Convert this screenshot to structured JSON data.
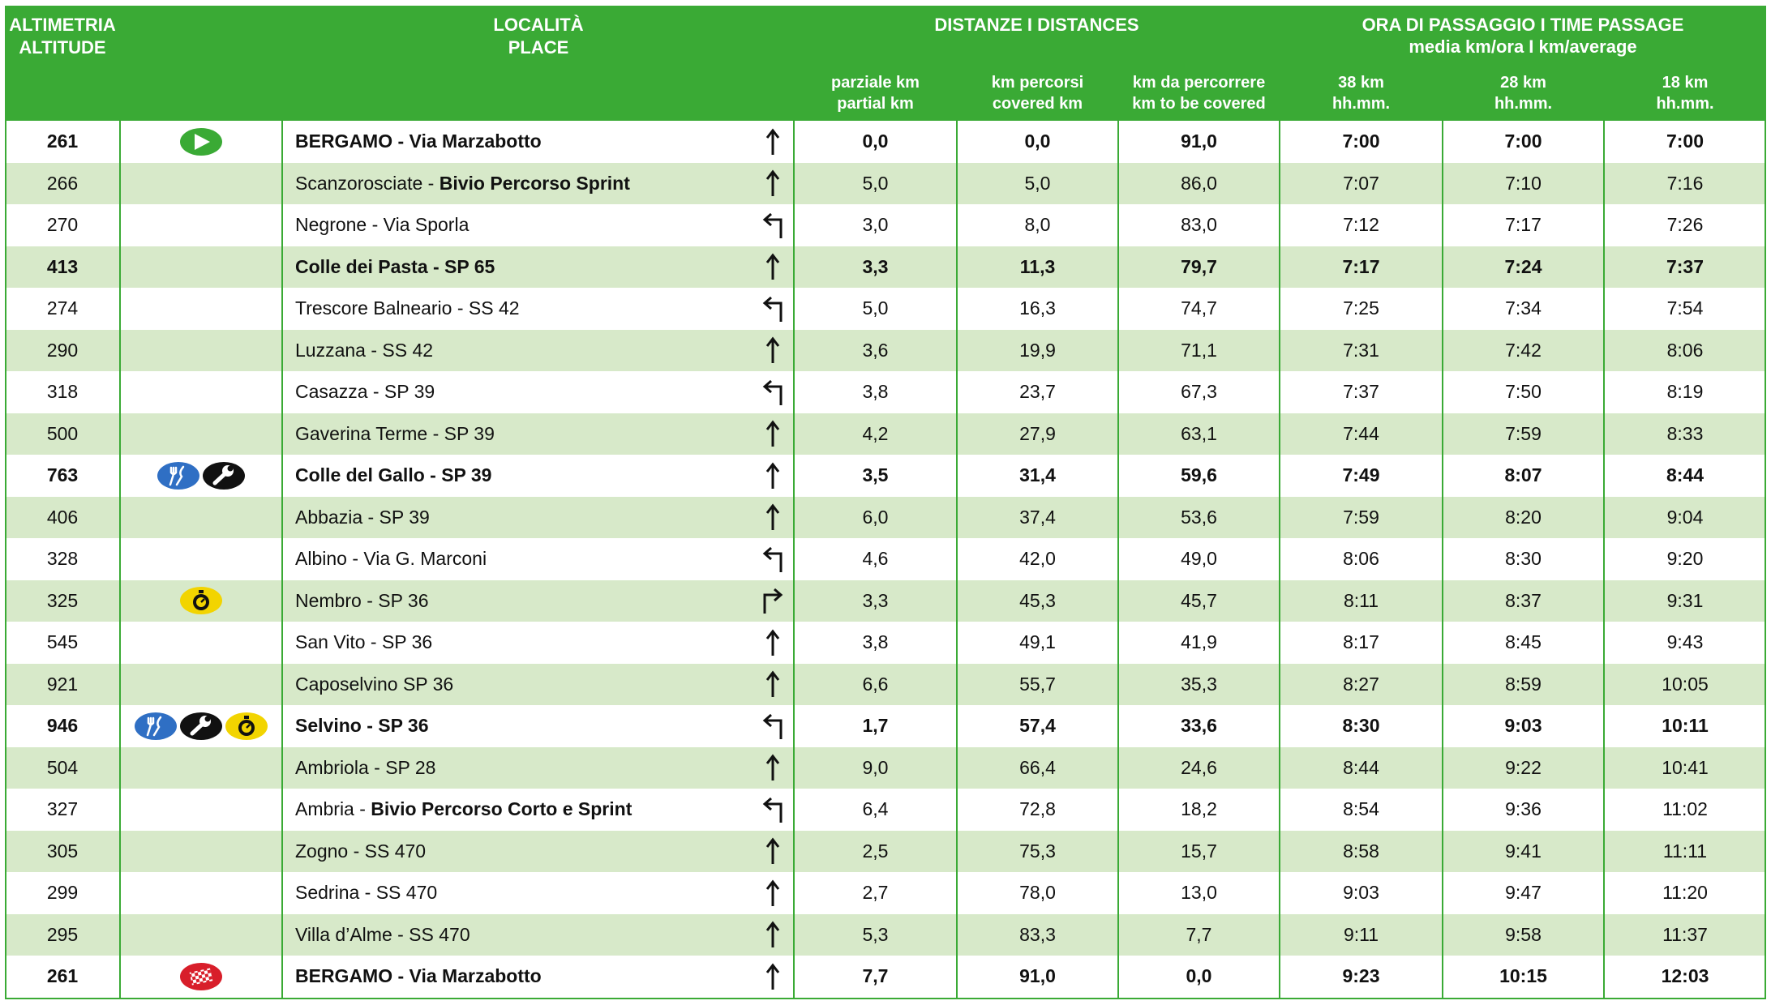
{
  "header": {
    "altitude": [
      "ALTIMETRIA",
      "ALTITUDE"
    ],
    "place": [
      "LOCALITÀ",
      "PLACE"
    ],
    "distances": "DISTANZE I DISTANCES",
    "time": [
      "ORA DI PASSAGGIO I TIME PASSAGE",
      "media km/ora I km/average"
    ],
    "columns": [
      [
        "parziale km",
        "partial km"
      ],
      [
        "km percorsi",
        "covered km"
      ],
      [
        "km da percorrere",
        "km to be covered"
      ],
      [
        "38 km",
        "hh.mm."
      ],
      [
        "28 km",
        "hh.mm."
      ],
      [
        "18 km",
        "hh.mm."
      ]
    ]
  },
  "rows": [
    {
      "altitude": "261",
      "icons": [
        "start"
      ],
      "place": [
        {
          "text": "BERGAMO - Via Marzabotto"
        }
      ],
      "arrow": "straight",
      "cells": [
        "0,0",
        "0,0",
        "91,0",
        "7:00",
        "7:00",
        "7:00"
      ],
      "bold": true
    },
    {
      "altitude": "266",
      "icons": [],
      "place": [
        {
          "text": "Scanzorosciate - "
        },
        {
          "text": "Bivio Percorso Sprint",
          "bold": true
        }
      ],
      "arrow": "straight",
      "cells": [
        "5,0",
        "5,0",
        "86,0",
        "7:07",
        "7:10",
        "7:16"
      ],
      "bold": false
    },
    {
      "altitude": "270",
      "icons": [],
      "place": [
        {
          "text": "Negrone - Via Sporla"
        }
      ],
      "arrow": "left",
      "cells": [
        "3,0",
        "8,0",
        "83,0",
        "7:12",
        "7:17",
        "7:26"
      ],
      "bold": false
    },
    {
      "altitude": "413",
      "icons": [],
      "place": [
        {
          "text": "Colle dei Pasta - SP 65"
        }
      ],
      "arrow": "straight",
      "cells": [
        "3,3",
        "11,3",
        "79,7",
        "7:17",
        "7:24",
        "7:37"
      ],
      "bold": true
    },
    {
      "altitude": "274",
      "icons": [],
      "place": [
        {
          "text": "Trescore Balneario - SS 42"
        }
      ],
      "arrow": "left",
      "cells": [
        "5,0",
        "16,3",
        "74,7",
        "7:25",
        "7:34",
        "7:54"
      ],
      "bold": false
    },
    {
      "altitude": "290",
      "icons": [],
      "place": [
        {
          "text": "Luzzana - SS 42"
        }
      ],
      "arrow": "straight",
      "cells": [
        "3,6",
        "19,9",
        "71,1",
        "7:31",
        "7:42",
        "8:06"
      ],
      "bold": false
    },
    {
      "altitude": "318",
      "icons": [],
      "place": [
        {
          "text": "Casazza - SP 39"
        }
      ],
      "arrow": "left",
      "cells": [
        "3,8",
        "23,7",
        "67,3",
        "7:37",
        "7:50",
        "8:19"
      ],
      "bold": false
    },
    {
      "altitude": "500",
      "icons": [],
      "place": [
        {
          "text": "Gaverina Terme - SP 39"
        }
      ],
      "arrow": "straight",
      "cells": [
        "4,2",
        "27,9",
        "63,1",
        "7:44",
        "7:59",
        "8:33"
      ],
      "bold": false
    },
    {
      "altitude": "763",
      "icons": [
        "food",
        "mech"
      ],
      "place": [
        {
          "text": "Colle del Gallo - SP 39"
        }
      ],
      "arrow": "straight",
      "cells": [
        "3,5",
        "31,4",
        "59,6",
        "7:49",
        "8:07",
        "8:44"
      ],
      "bold": true
    },
    {
      "altitude": "406",
      "icons": [],
      "place": [
        {
          "text": "Abbazia - SP 39"
        }
      ],
      "arrow": "straight",
      "cells": [
        "6,0",
        "37,4",
        "53,6",
        "7:59",
        "8:20",
        "9:04"
      ],
      "bold": false
    },
    {
      "altitude": "328",
      "icons": [],
      "place": [
        {
          "text": "Albino - Via G. Marconi"
        }
      ],
      "arrow": "left",
      "cells": [
        "4,6",
        "42,0",
        "49,0",
        "8:06",
        "8:30",
        "9:20"
      ],
      "bold": false
    },
    {
      "altitude": "325",
      "icons": [
        "timing"
      ],
      "place": [
        {
          "text": "Nembro - SP 36"
        }
      ],
      "arrow": "right",
      "cells": [
        "3,3",
        "45,3",
        "45,7",
        "8:11",
        "8:37",
        "9:31"
      ],
      "bold": false
    },
    {
      "altitude": "545",
      "icons": [],
      "place": [
        {
          "text": "San Vito - SP 36"
        }
      ],
      "arrow": "straight",
      "cells": [
        "3,8",
        "49,1",
        "41,9",
        "8:17",
        "8:45",
        "9:43"
      ],
      "bold": false
    },
    {
      "altitude": "921",
      "icons": [],
      "place": [
        {
          "text": "Caposelvino SP 36"
        }
      ],
      "arrow": "straight",
      "cells": [
        "6,6",
        "55,7",
        "35,3",
        "8:27",
        "8:59",
        "10:05"
      ],
      "bold": false
    },
    {
      "altitude": "946",
      "icons": [
        "food",
        "mech",
        "timing"
      ],
      "place": [
        {
          "text": "Selvino - SP 36"
        }
      ],
      "arrow": "left",
      "cells": [
        "1,7",
        "57,4",
        "33,6",
        "8:30",
        "9:03",
        "10:11"
      ],
      "bold": true
    },
    {
      "altitude": "504",
      "icons": [],
      "place": [
        {
          "text": "Ambriola - SP 28"
        }
      ],
      "arrow": "straight",
      "cells": [
        "9,0",
        "66,4",
        "24,6",
        "8:44",
        "9:22",
        "10:41"
      ],
      "bold": false
    },
    {
      "altitude": "327",
      "icons": [],
      "place": [
        {
          "text": "Ambria - "
        },
        {
          "text": "Bivio Percorso Corto e Sprint",
          "bold": true
        }
      ],
      "arrow": "left",
      "cells": [
        "6,4",
        "72,8",
        "18,2",
        "8:54",
        "9:36",
        "11:02"
      ],
      "bold": false
    },
    {
      "altitude": "305",
      "icons": [],
      "place": [
        {
          "text": "Zogno - SS 470"
        }
      ],
      "arrow": "straight",
      "cells": [
        "2,5",
        "75,3",
        "15,7",
        "8:58",
        "9:41",
        "11:11"
      ],
      "bold": false
    },
    {
      "altitude": "299",
      "icons": [],
      "place": [
        {
          "text": "Sedrina - SS 470"
        }
      ],
      "arrow": "straight",
      "cells": [
        "2,7",
        "78,0",
        "13,0",
        "9:03",
        "9:47",
        "11:20"
      ],
      "bold": false
    },
    {
      "altitude": "295",
      "icons": [],
      "place": [
        {
          "text": "Villa d’Alme - SS 470"
        }
      ],
      "arrow": "straight",
      "cells": [
        "5,3",
        "83,3",
        "7,7",
        "9:11",
        "9:58",
        "11:37"
      ],
      "bold": false
    },
    {
      "altitude": "261",
      "icons": [
        "finish"
      ],
      "place": [
        {
          "text": "BERGAMO - Via Marzabotto"
        }
      ],
      "arrow": "straight",
      "cells": [
        "7,7",
        "91,0",
        "0,0",
        "9:23",
        "10:15",
        "12:03"
      ],
      "bold": true
    }
  ]
}
